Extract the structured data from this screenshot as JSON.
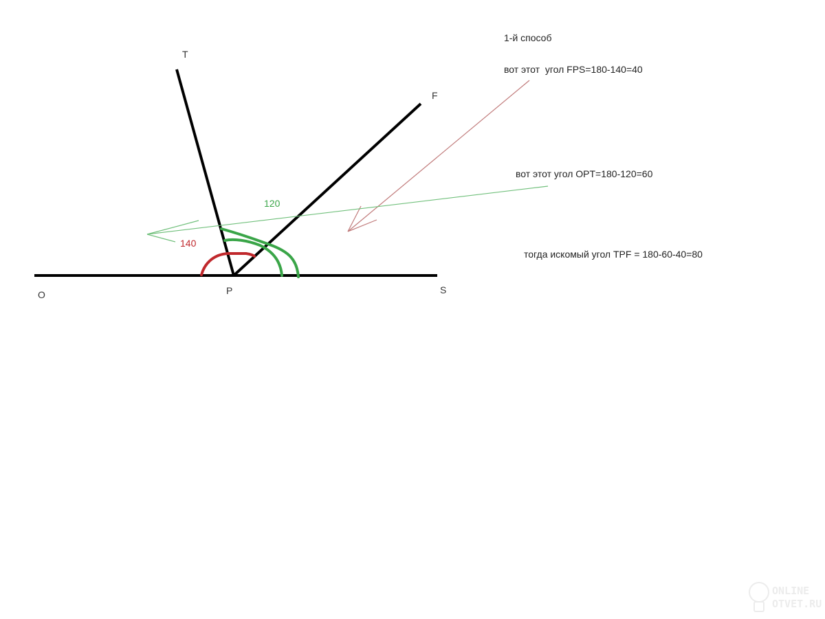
{
  "labels": {
    "T": "T",
    "F": "F",
    "O": "O",
    "P": "P",
    "S": "S"
  },
  "angles": {
    "green": "120",
    "red": "140"
  },
  "notes": {
    "method": "1-й способ",
    "fps": "вот этот  угол FPS=180-140=40",
    "opt": "вот этот угол OPT=180-120=60",
    "tpf": "тогда искомый угол TPF = 180-60-40=80"
  },
  "watermark": {
    "line1": "ONLINE",
    "line2": "OTVET.RU"
  },
  "colors": {
    "lines": "#000000",
    "green": "#3aa548",
    "red": "#c0282c",
    "red_arrow": "#c07a7a",
    "green_arrow": "#6fbf7a",
    "text": "#333333"
  }
}
